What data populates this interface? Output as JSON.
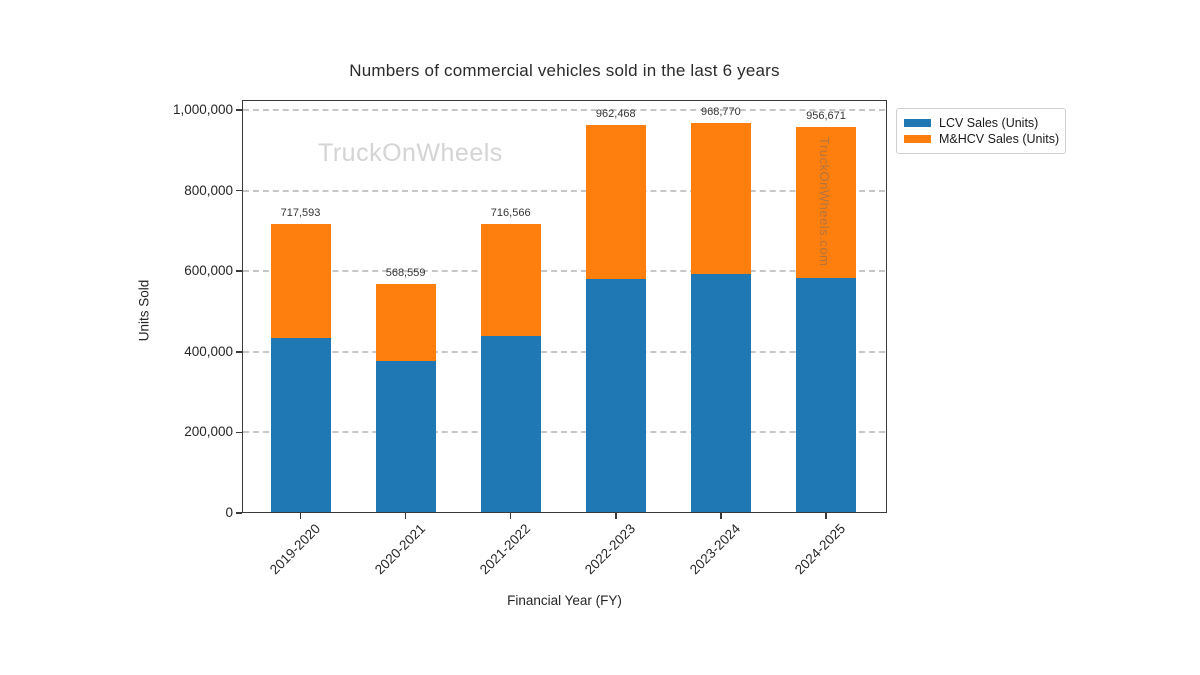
{
  "chart_data": {
    "type": "bar",
    "stacked": true,
    "title": "Numbers of commercial vehicles sold in the last 6 years",
    "xlabel": "Financial Year (FY)",
    "ylabel": "Units Sold",
    "categories": [
      "2019-2020",
      "2020-2021",
      "2021-2022",
      "2022-2023",
      "2023-2024",
      "2024-2025"
    ],
    "series": [
      {
        "name": "LCV Sales (Units)",
        "color": "#1f77b4",
        "values": [
          434000,
          376000,
          438000,
          580000,
          592000,
          582000
        ]
      },
      {
        "name": "M&HCV Sales (Units)",
        "color": "#ff7f0e",
        "values": [
          283593,
          192559,
          278566,
          382468,
          376770,
          374671
        ]
      }
    ],
    "totals": [
      717593,
      568559,
      716566,
      962468,
      968770,
      956671
    ],
    "total_labels": [
      "717,593",
      "568,559",
      "716,566",
      "962,468",
      "968,770",
      "956,671"
    ],
    "ylim": [
      0,
      1025000
    ],
    "ytick_values": [
      0,
      200000,
      400000,
      600000,
      800000,
      1000000
    ],
    "ytick_labels": [
      "0",
      "200,000",
      "400,000",
      "600,000",
      "800,000",
      "1,000,000"
    ],
    "grid": "horizontal-dashed",
    "legend_position": "upper-right"
  },
  "watermarks": {
    "main": "TruckOnWheels",
    "side": "TruckOnWheels.com"
  }
}
